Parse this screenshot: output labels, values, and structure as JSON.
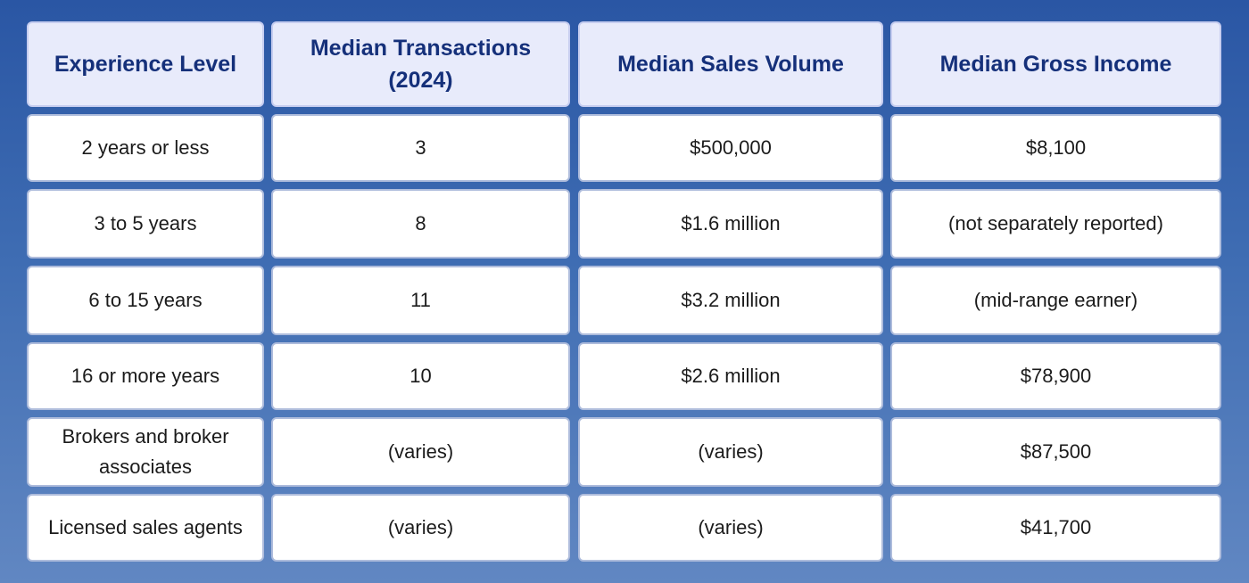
{
  "headers": [
    "Experience Level",
    "Median Transactions (2024)",
    "Median Sales Volume",
    "Median Gross Income"
  ],
  "rows": [
    [
      "2 years or less",
      "3",
      "$500,000",
      "$8,100"
    ],
    [
      "3 to 5 years",
      "8",
      "$1.6 million",
      "(not separately reported)"
    ],
    [
      "6 to 15 years",
      "11",
      "$3.2 million",
      "(mid-range earner)"
    ],
    [
      "16 or more years",
      "10",
      "$2.6 million",
      "$78,900"
    ],
    [
      "Brokers and broker associates",
      "(varies)",
      "(varies)",
      "$87,500"
    ],
    [
      "Licensed sales agents",
      "(varies)",
      "(varies)",
      "$41,700"
    ]
  ]
}
